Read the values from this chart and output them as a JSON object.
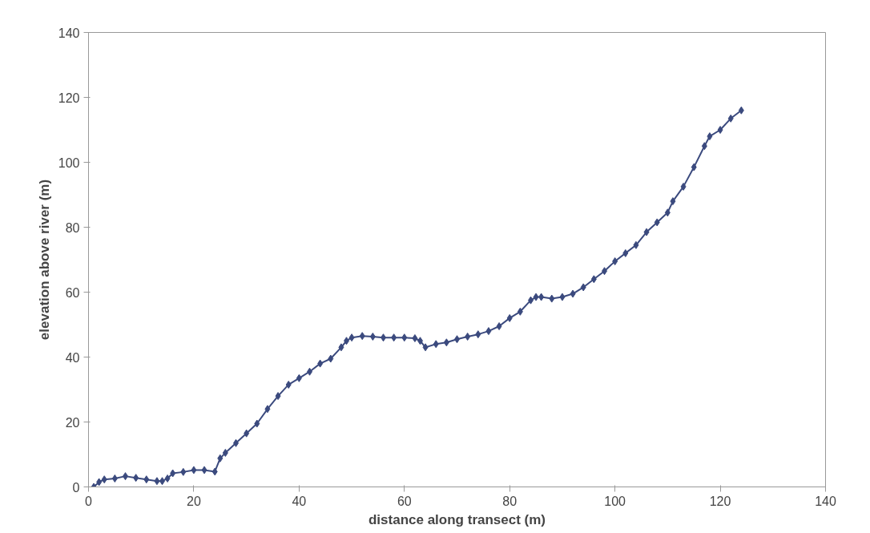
{
  "chart_data": {
    "type": "line",
    "xlabel": "distance along transect (m)",
    "ylabel": "elevation above river (m)",
    "x": [
      1,
      2,
      3,
      5,
      7,
      9,
      11,
      13,
      14,
      15,
      16,
      18,
      20,
      22,
      24,
      25,
      26,
      28,
      30,
      32,
      34,
      36,
      38,
      40,
      42,
      44,
      46,
      48,
      49,
      50,
      52,
      54,
      56,
      58,
      60,
      62,
      63,
      64,
      66,
      68,
      70,
      72,
      74,
      76,
      78,
      80,
      82,
      84,
      85,
      86,
      88,
      90,
      92,
      94,
      96,
      98,
      100,
      102,
      104,
      106,
      108,
      110,
      111,
      113,
      115,
      117,
      118,
      120,
      122,
      124
    ],
    "series": [
      {
        "color": "#3b4a7e",
        "values": [
          0,
          1.5,
          2.3,
          2.6,
          3.3,
          2.8,
          2.3,
          1.8,
          1.8,
          2.6,
          4.2,
          4.6,
          5.2,
          5.2,
          4.7,
          8.8,
          10.5,
          13.5,
          16.5,
          19.5,
          24,
          28,
          31.5,
          33.5,
          35.5,
          38,
          39.5,
          43,
          45,
          46,
          46.5,
          46.3,
          46,
          46,
          46,
          45.8,
          45,
          43,
          44,
          44.5,
          45.5,
          46.3,
          47,
          48,
          49.5,
          52,
          54,
          57.5,
          58.5,
          58.5,
          58,
          58.5,
          59.5,
          61.5,
          64,
          66.5,
          69.5,
          72,
          74.5,
          78.5,
          81.5,
          84.5,
          88,
          92.5,
          98.5,
          105,
          108,
          110,
          113.5,
          116
        ]
      }
    ],
    "xlim": [
      0,
      140
    ],
    "ylim": [
      0,
      140
    ],
    "xticks": [
      0,
      20,
      40,
      60,
      80,
      100,
      120,
      140
    ],
    "yticks": [
      0,
      20,
      40,
      60,
      80,
      100,
      120,
      140
    ],
    "grid": false,
    "marker": "diamond",
    "line_style": "solid"
  }
}
